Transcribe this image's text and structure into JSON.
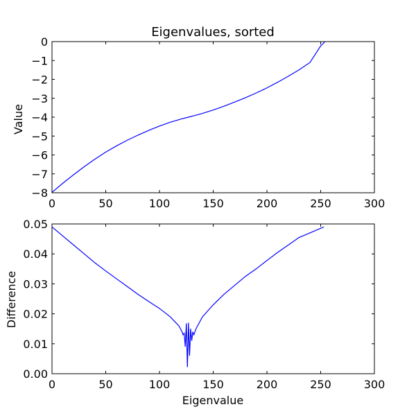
{
  "chart_data": [
    {
      "type": "line",
      "title": "Eigenvalues, sorted",
      "xlabel": "",
      "ylabel": "Value",
      "xlim": [
        0,
        300
      ],
      "ylim": [
        -8,
        0
      ],
      "xticks": [
        0,
        50,
        100,
        150,
        200,
        250,
        300
      ],
      "yticks": [
        0,
        -1,
        -2,
        -3,
        -4,
        -5,
        -6,
        -7,
        -8
      ],
      "grid": false,
      "line_color": "#0000ff",
      "series": [
        {
          "x": [
            0,
            10,
            20,
            30,
            40,
            50,
            60,
            70,
            80,
            90,
            100,
            110,
            120,
            127,
            135,
            140,
            150,
            160,
            170,
            180,
            190,
            200,
            210,
            220,
            230,
            240,
            250,
            254
          ],
          "values": [
            -7.98,
            -7.5,
            -7.05,
            -6.62,
            -6.22,
            -5.85,
            -5.52,
            -5.22,
            -4.95,
            -4.7,
            -4.47,
            -4.27,
            -4.1,
            -4.0,
            -3.88,
            -3.8,
            -3.62,
            -3.42,
            -3.2,
            -2.97,
            -2.72,
            -2.45,
            -2.15,
            -1.83,
            -1.49,
            -1.11,
            -0.23,
            0.0
          ]
        }
      ]
    },
    {
      "type": "line",
      "title": "",
      "xlabel": "Eigenvalue",
      "ylabel": "Difference",
      "xlim": [
        0,
        300
      ],
      "ylim": [
        0,
        0.05
      ],
      "xticks": [
        0,
        50,
        100,
        150,
        200,
        250,
        300
      ],
      "yticks": [
        0.0,
        0.01,
        0.02,
        0.03,
        0.04,
        0.05
      ],
      "ytick_labels": [
        "0.00",
        "0.01",
        "0.02",
        "0.03",
        "0.04",
        "0.05"
      ],
      "grid": false,
      "line_color": "#0000ff",
      "series": [
        {
          "x": [
            0,
            10,
            20,
            30,
            40,
            50,
            60,
            70,
            80,
            90,
            100,
            110,
            118,
            121,
            122,
            123,
            124,
            125,
            126,
            127,
            128,
            129,
            130,
            131,
            132,
            134,
            140,
            150,
            160,
            170,
            180,
            190,
            200,
            210,
            220,
            230,
            240,
            253
          ],
          "values": [
            0.049,
            0.046,
            0.043,
            0.04,
            0.037,
            0.0343,
            0.0317,
            0.0291,
            0.0265,
            0.0241,
            0.0218,
            0.019,
            0.016,
            0.014,
            0.013,
            0.0135,
            0.009,
            0.0168,
            0.0022,
            0.017,
            0.006,
            0.015,
            0.011,
            0.014,
            0.013,
            0.015,
            0.019,
            0.023,
            0.0265,
            0.0295,
            0.0325,
            0.035,
            0.0378,
            0.0405,
            0.043,
            0.0455,
            0.047,
            0.049
          ]
        }
      ]
    }
  ]
}
